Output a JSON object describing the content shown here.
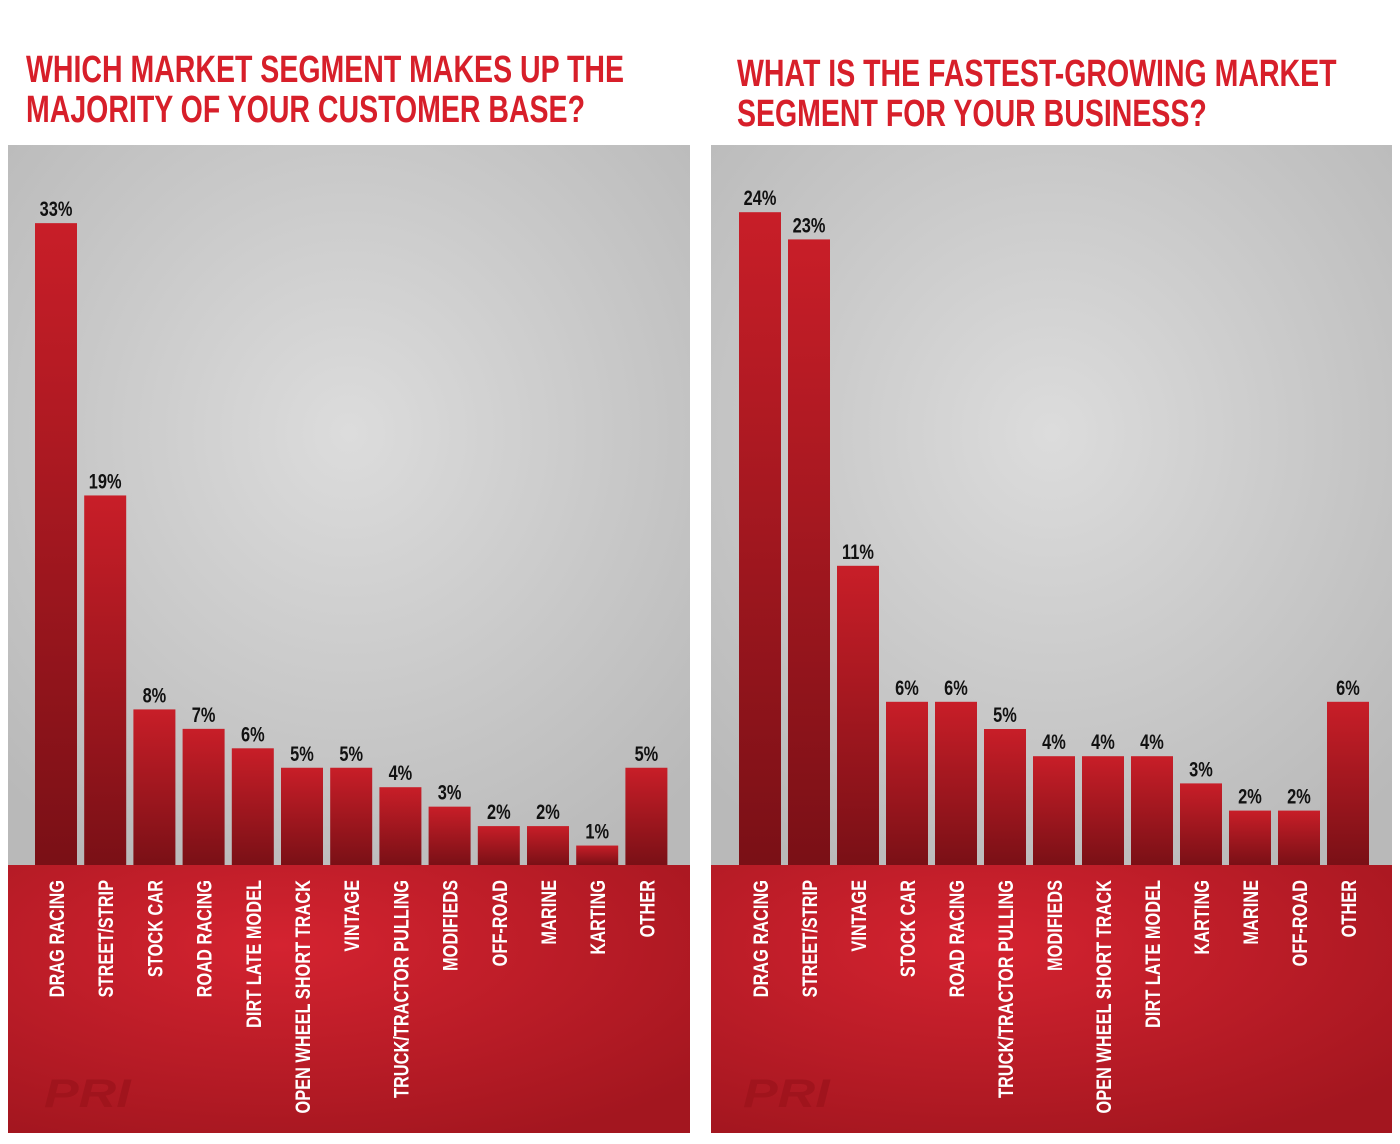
{
  "colors": {
    "title": "#d71f2a",
    "bar": "#b81a24",
    "band": "#c81e28",
    "background": "#cfcfcf",
    "label": "#ffffff",
    "value": "#111111"
  },
  "chart_data": [
    {
      "type": "bar",
      "title": [
        "WHICH MARKET SEGMENT MAKES UP THE",
        "MAJORITY OF YOUR CUSTOMER BASE?"
      ],
      "categories": [
        "DRAG RACING",
        "STREET/STRIP",
        "STOCK CAR",
        "ROAD RACING",
        "DIRT LATE MODEL",
        "OPEN WHEEL SHORT TRACK",
        "VINTAGE",
        "TRUCK/TRACTOR PULLING",
        "MODIFIEDS",
        "OFF-ROAD",
        "MARINE",
        "KARTING",
        "OTHER"
      ],
      "values": [
        33,
        19,
        8,
        7,
        6,
        5,
        5,
        4,
        3,
        2,
        2,
        1,
        5
      ],
      "value_labels": [
        "33%",
        "19%",
        "8%",
        "7%",
        "6%",
        "5%",
        "5%",
        "4%",
        "3%",
        "2%",
        "2%",
        "1%",
        "5%"
      ],
      "unit": "%",
      "ylim": [
        0,
        36
      ],
      "grid": false,
      "logo": "PRI"
    },
    {
      "type": "bar",
      "title": [
        "WHAT IS THE FASTEST-GROWING MARKET",
        "SEGMENT FOR YOUR BUSINESS?"
      ],
      "categories": [
        "DRAG RACING",
        "STREET/STRIP",
        "VINTAGE",
        "STOCK CAR",
        "ROAD RACING",
        "TRUCK/TRACTOR PULLING",
        "MODIFIEDS",
        "OPEN WHEEL SHORT TRACK",
        "DIRT LATE MODEL",
        "KARTING",
        "MARINE",
        "OFF-ROAD",
        "OTHER"
      ],
      "values": [
        24,
        23,
        11,
        6,
        6,
        5,
        4,
        4,
        4,
        3,
        2,
        2,
        6
      ],
      "value_labels": [
        "24%",
        "23%",
        "11%",
        "6%",
        "6%",
        "5%",
        "4%",
        "4%",
        "4%",
        "3%",
        "2%",
        "2%",
        "6%"
      ],
      "unit": "%",
      "ylim": [
        0,
        26
      ],
      "grid": false,
      "logo": "PRI"
    }
  ]
}
